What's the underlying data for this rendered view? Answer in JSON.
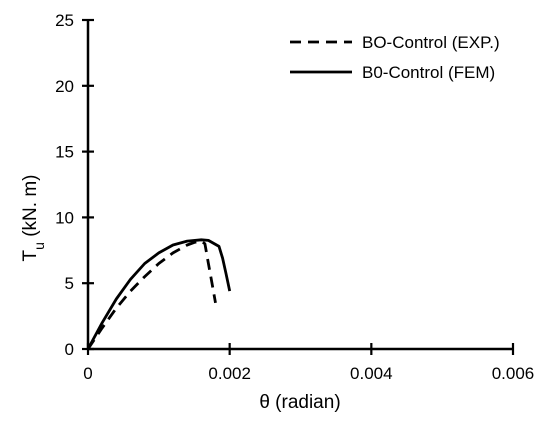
{
  "chart_data": {
    "type": "line",
    "xlabel": "θ (radian)",
    "ylabel_main": "T",
    "ylabel_sub": "u",
    "ylabel_rest": " (kN. m)",
    "xlim": [
      0,
      0.006
    ],
    "ylim": [
      0,
      25
    ],
    "x_ticks": [
      0,
      0.002,
      0.004,
      0.006
    ],
    "x_tick_labels": [
      "0",
      "0.002",
      "0.004",
      "0.006"
    ],
    "y_ticks": [
      0,
      5,
      10,
      15,
      20,
      25
    ],
    "y_tick_labels": [
      "0",
      "5",
      "10",
      "15",
      "20",
      "25"
    ],
    "grid": false,
    "legend_position": "top-right",
    "series": [
      {
        "name": "BO-Control (EXP.)",
        "style": "dashed",
        "color": "#000000",
        "x": [
          0,
          0.0002,
          0.0004,
          0.0006,
          0.0008,
          0.001,
          0.0012,
          0.0014,
          0.0015,
          0.0016,
          0.00165,
          0.0017,
          0.00175,
          0.0018
        ],
        "y": [
          0,
          1.6,
          3.1,
          4.4,
          5.5,
          6.5,
          7.3,
          7.9,
          8.1,
          8.2,
          8.0,
          6.5,
          5.0,
          3.5
        ]
      },
      {
        "name": "B0-Control (FEM)",
        "style": "solid",
        "color": "#000000",
        "x": [
          0,
          0.0002,
          0.0004,
          0.0006,
          0.0008,
          0.001,
          0.0012,
          0.0014,
          0.0016,
          0.0017,
          0.00185,
          0.0019,
          0.00195,
          0.002
        ],
        "y": [
          0,
          2.0,
          3.8,
          5.3,
          6.5,
          7.3,
          7.9,
          8.2,
          8.3,
          8.25,
          7.8,
          6.9,
          5.7,
          4.4
        ]
      }
    ]
  }
}
